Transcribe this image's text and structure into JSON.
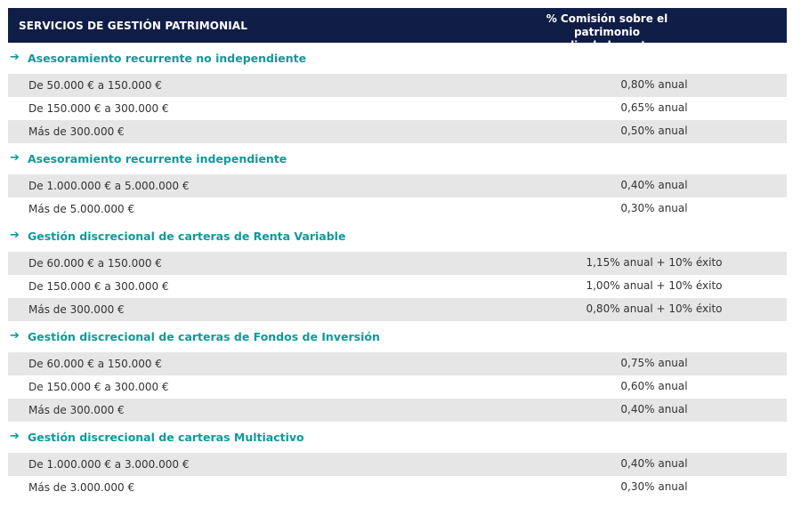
{
  "header": {
    "service_label": "SERVICIOS DE GESTIÓN PATRIMONIAL",
    "fee_label_line1": "% Comisión sobre el patrimonio",
    "fee_label_line2": "medio de la cartera"
  },
  "colors": {
    "header_bg": "#101d47",
    "section_title": "#0e9a9a",
    "row_shade": "#e6e6e6"
  },
  "arrow_icon": "right-arrow-icon",
  "arrow_glyph": "➔",
  "sections": [
    {
      "title": "Asesoramiento recurrente no independiente",
      "rows": [
        {
          "range": "De 50.000 € a 150.000 €",
          "fee": "0,80% anual"
        },
        {
          "range": "De 150.000 € a 300.000 €",
          "fee": "0,65% anual"
        },
        {
          "range": "Más de 300.000 €",
          "fee": "0,50% anual"
        }
      ]
    },
    {
      "title": "Asesoramiento recurrente independiente",
      "rows": [
        {
          "range": "De 1.000.000 € a 5.000.000 €",
          "fee": "0,40% anual"
        },
        {
          "range": "Más de 5.000.000 €",
          "fee": "0,30% anual"
        }
      ]
    },
    {
      "title": "Gestión discrecional de carteras de Renta Variable",
      "rows": [
        {
          "range": "De 60.000 € a 150.000 €",
          "fee": "1,15% anual + 10% éxito"
        },
        {
          "range": "De 150.000 € a 300.000 €",
          "fee": "1,00% anual + 10% éxito"
        },
        {
          "range": "Más de 300.000 €",
          "fee": "0,80% anual + 10% éxito"
        }
      ]
    },
    {
      "title": "Gestión discrecional de carteras de Fondos de Inversión",
      "rows": [
        {
          "range": "De 60.000 € a 150.000 €",
          "fee": "0,75% anual"
        },
        {
          "range": "De 150.000 € a 300.000 €",
          "fee": "0,60% anual"
        },
        {
          "range": "Más de 300.000 €",
          "fee": "0,40% anual"
        }
      ]
    },
    {
      "title": "Gestión discrecional de carteras Multiactivo",
      "rows": [
        {
          "range": "De 1.000.000 € a 3.000.000 €",
          "fee": "0,40% anual"
        },
        {
          "range": "Más de 3.000.000 €",
          "fee": "0,30% anual"
        }
      ]
    }
  ]
}
